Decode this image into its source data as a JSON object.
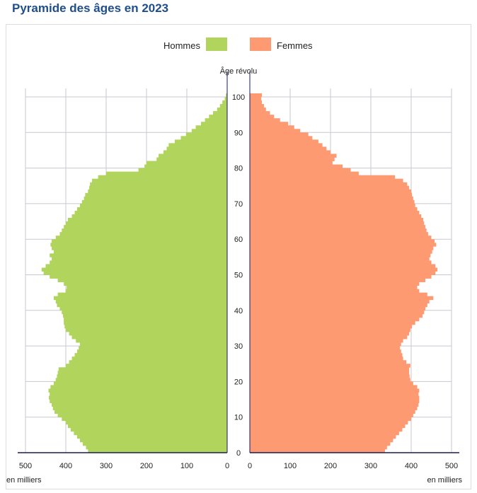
{
  "title": "Pyramide des âges en 2023",
  "chart_data": {
    "type": "bar",
    "orientation": "horizontal-pyramid",
    "title": "Pyramide des âges en 2023",
    "ylabel": "Âge révolu",
    "xlabel_left": "en milliers",
    "xlabel_right": "en milliers",
    "xlim": [
      0,
      500
    ],
    "ylim": [
      0,
      100
    ],
    "x_ticks": [
      0,
      100,
      200,
      300,
      400,
      500
    ],
    "y_ticks": [
      0,
      10,
      20,
      30,
      40,
      50,
      60,
      70,
      80,
      90,
      100
    ],
    "grid": true,
    "legend_position": "top",
    "ages_from": 0,
    "series": [
      {
        "name": "Hommes",
        "color": "#b0d45c",
        "side": "left",
        "values": [
          345,
          350,
          358,
          365,
          372,
          380,
          388,
          395,
          400,
          410,
          420,
          428,
          432,
          435,
          440,
          442,
          440,
          443,
          438,
          430,
          425,
          422,
          420,
          418,
          400,
          392,
          385,
          378,
          372,
          368,
          365,
          375,
          385,
          392,
          400,
          403,
          405,
          405,
          407,
          410,
          415,
          422,
          425,
          430,
          420,
          400,
          398,
          405,
          420,
          440,
          455,
          460,
          450,
          440,
          435,
          440,
          430,
          435,
          438,
          435,
          425,
          415,
          410,
          405,
          400,
          395,
          385,
          378,
          372,
          365,
          360,
          355,
          352,
          345,
          342,
          340,
          335,
          320,
          300,
          220,
          205,
          200,
          175,
          170,
          158,
          150,
          145,
          130,
          115,
          102,
          88,
          78,
          65,
          55,
          45,
          35,
          25,
          18,
          12,
          6,
          3
        ]
      },
      {
        "name": "Femmes",
        "color": "#fd9a72",
        "side": "right",
        "values": [
          335,
          340,
          348,
          355,
          362,
          370,
          378,
          385,
          392,
          400,
          405,
          410,
          415,
          418,
          420,
          420,
          418,
          420,
          415,
          405,
          398,
          396,
          395,
          395,
          398,
          388,
          380,
          378,
          375,
          372,
          375,
          380,
          390,
          395,
          398,
          402,
          410,
          420,
          428,
          432,
          435,
          440,
          445,
          455,
          440,
          420,
          415,
          420,
          435,
          450,
          460,
          465,
          460,
          450,
          445,
          448,
          452,
          455,
          462,
          458,
          450,
          442,
          438,
          435,
          432,
          430,
          425,
          420,
          415,
          410,
          408,
          405,
          402,
          400,
          395,
          390,
          380,
          360,
          270,
          250,
          230,
          205,
          210,
          215,
          200,
          190,
          180,
          170,
          155,
          145,
          125,
          110,
          95,
          75,
          60,
          50,
          40,
          35,
          30,
          28,
          30
        ]
      }
    ]
  }
}
